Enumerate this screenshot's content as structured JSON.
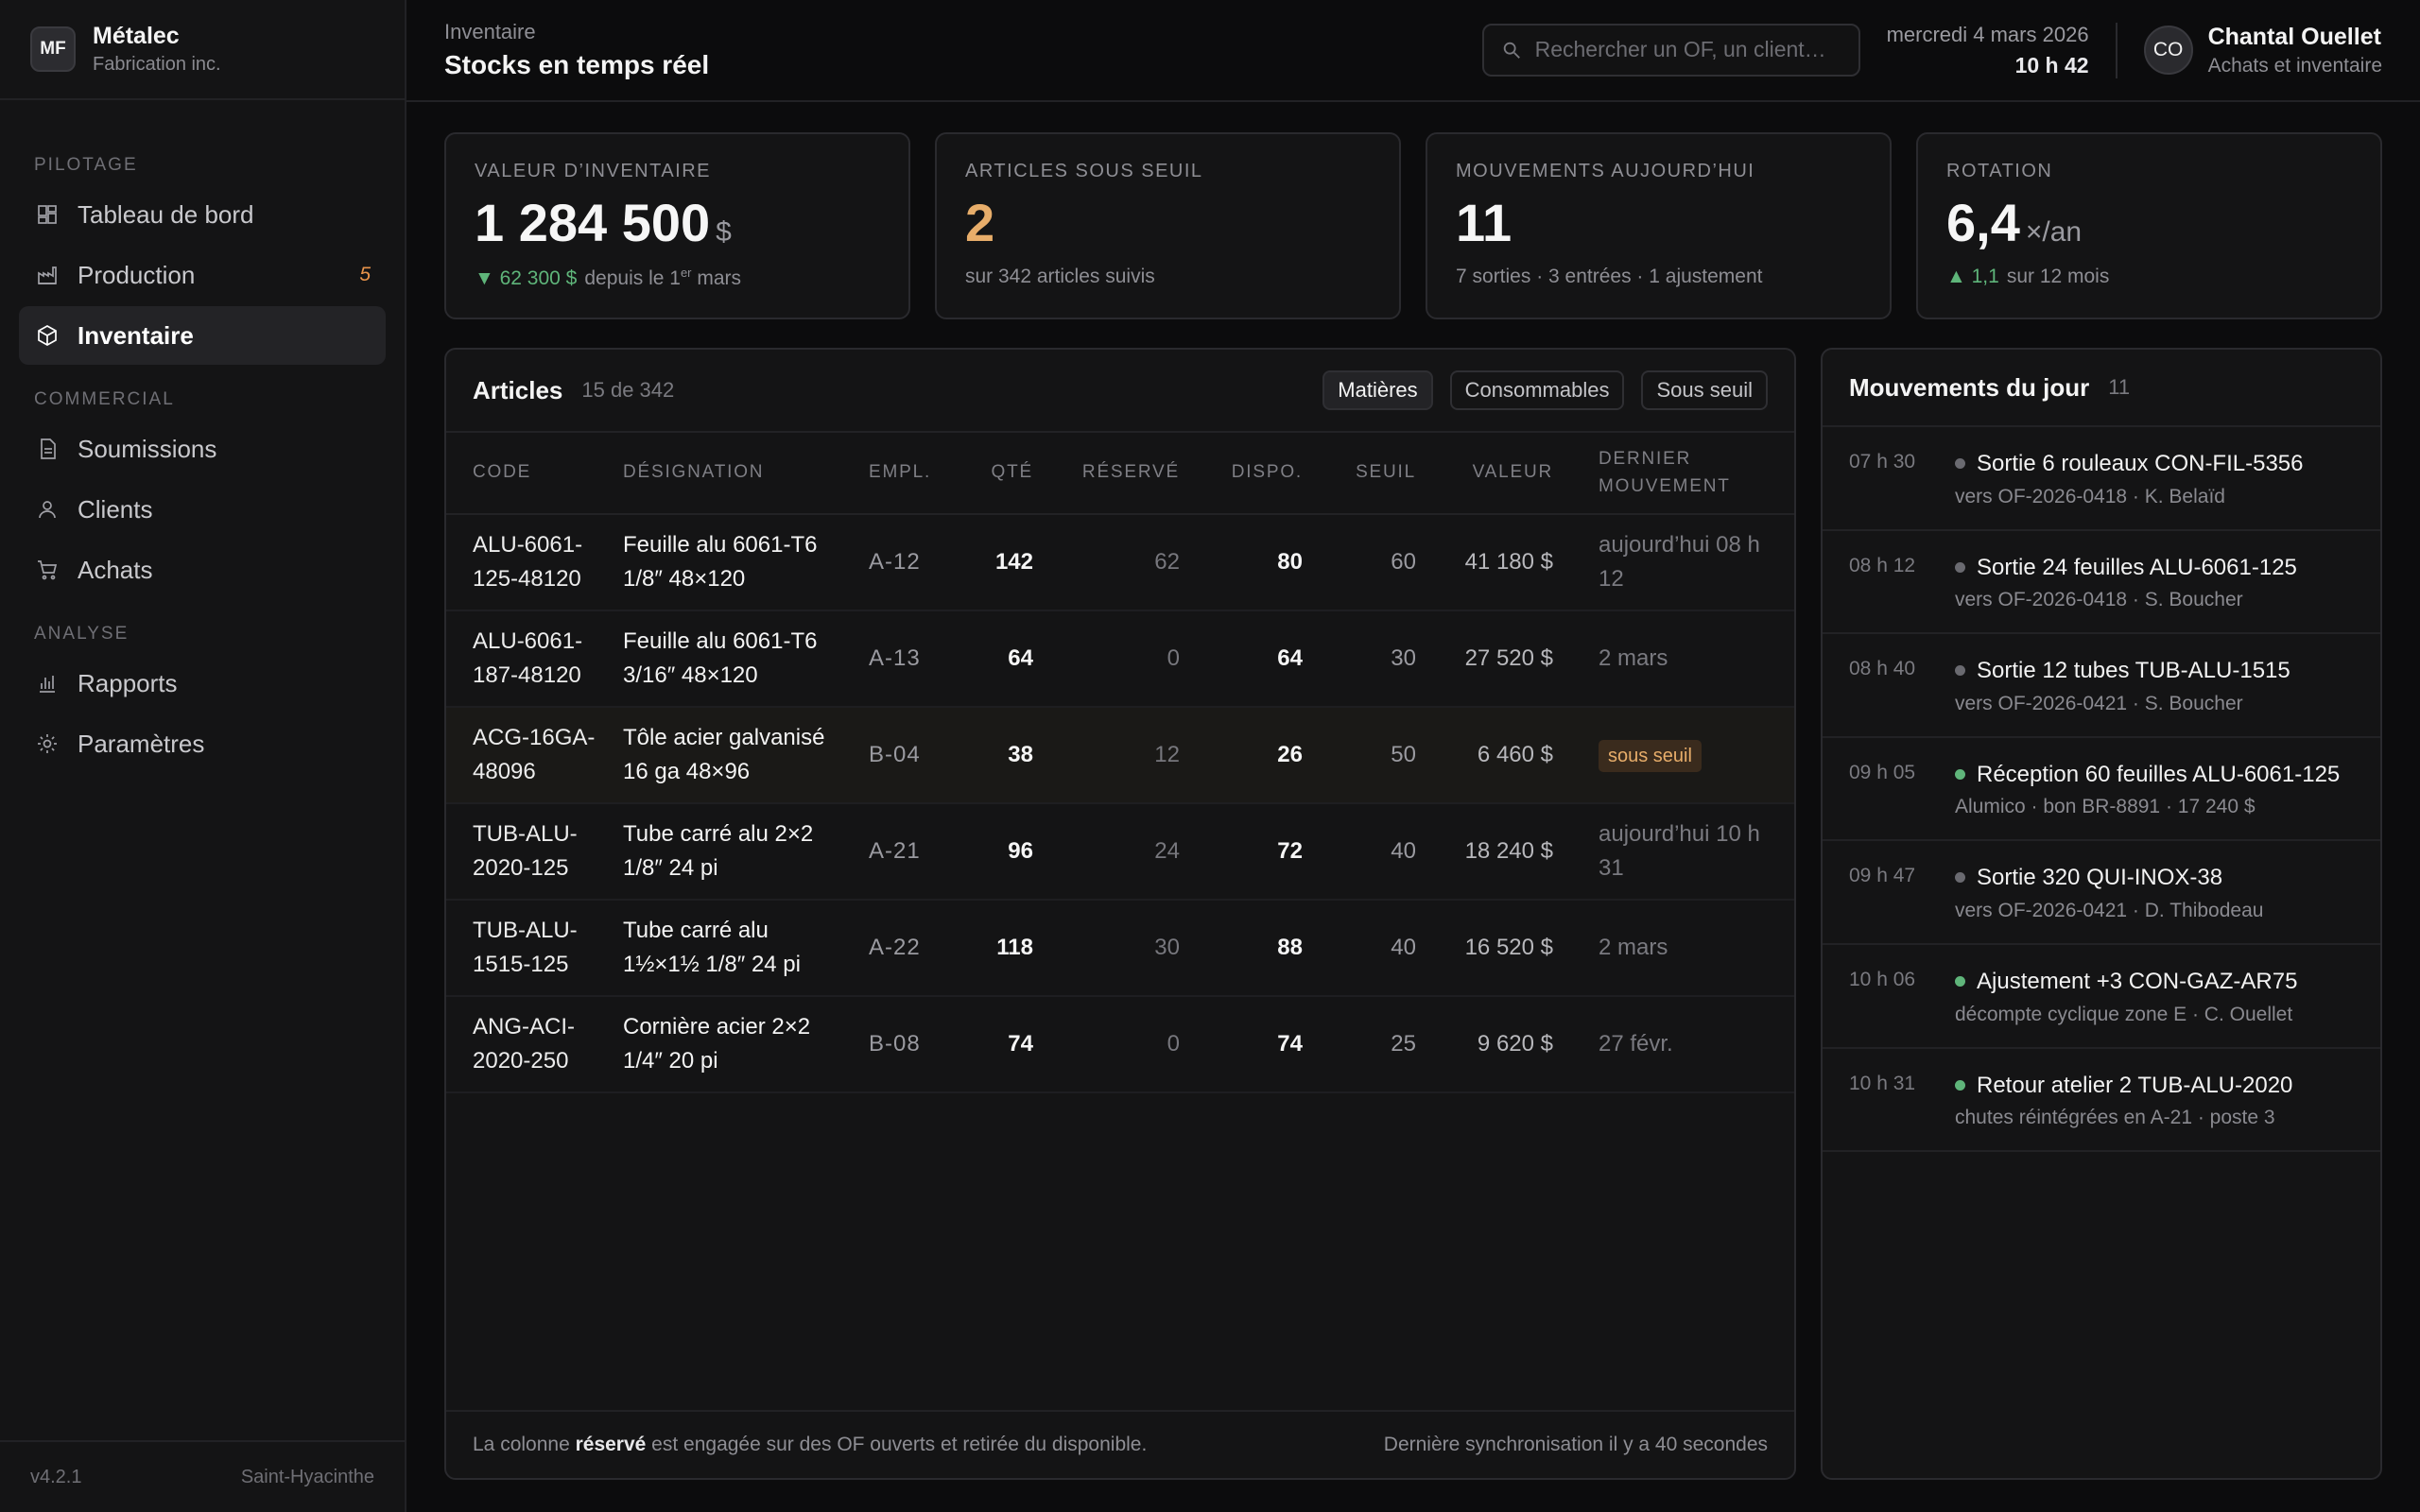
{
  "brand": {
    "initials": "MF",
    "name": "Métalec",
    "sub": "Fabrication inc."
  },
  "nav": {
    "sections": [
      {
        "label": "PILOTAGE",
        "items": [
          {
            "label": "Tableau de bord",
            "icon": "dashboard-icon"
          },
          {
            "label": "Production",
            "icon": "factory-icon",
            "badge": "5"
          },
          {
            "label": "Inventaire",
            "icon": "box-icon",
            "active": true
          }
        ]
      },
      {
        "label": "COMMERCIAL",
        "items": [
          {
            "label": "Soumissions",
            "icon": "document-icon"
          },
          {
            "label": "Clients",
            "icon": "user-icon"
          },
          {
            "label": "Achats",
            "icon": "cart-icon"
          }
        ]
      },
      {
        "label": "ANALYSE",
        "items": [
          {
            "label": "Rapports",
            "icon": "bar-chart-icon"
          },
          {
            "label": "Paramètres",
            "icon": "gear-icon"
          }
        ]
      }
    ]
  },
  "footer": {
    "version": "v4.2.1",
    "location": "Saint-Hyacinthe"
  },
  "header": {
    "breadcrumb": "Inventaire",
    "title": "Stocks en temps réel",
    "search_placeholder": "Rechercher un OF, un client…",
    "date": "mercredi 4 mars 2026",
    "time": "10 h 42",
    "user": {
      "initials": "CO",
      "name": "Chantal Ouellet",
      "role": "Achats et inventaire"
    }
  },
  "kpis": {
    "valeur": {
      "label": "VALEUR D’INVENTAIRE",
      "value": "1 284 500",
      "unit": "$",
      "delta": "▼ 62 300 $",
      "sub_pre": "depuis le 1",
      "sub_sup": "er",
      "sub_post": "mars"
    },
    "seuil": {
      "label": "ARTICLES SOUS SEUIL",
      "value": "2",
      "sub": "sur 342 articles suivis"
    },
    "mouvements": {
      "label": "MOUVEMENTS AUJOURD’HUI",
      "value": "11",
      "sub": "7 sorties · 3 entrées · 1 ajustement"
    },
    "rotation": {
      "label": "ROTATION",
      "value": "6,4",
      "unit": "×/an",
      "delta": "▲ 1,1",
      "sub": "sur 12 mois"
    }
  },
  "articles": {
    "title": "Articles",
    "count": "15 de 342",
    "filters": [
      "Matières",
      "Consommables",
      "Sous seuil"
    ],
    "columns": {
      "code": "CODE",
      "desig": "DÉSIGNATION",
      "empl": "EMPL.",
      "qty": "QTÉ",
      "res": "RÉSERVÉ",
      "dispo": "DISPO.",
      "seuil": "SEUIL",
      "val": "VALEUR",
      "last": "DERNIER MOUVEMENT"
    },
    "rows": [
      {
        "code": "ALU-6061-125-48120",
        "desig": "Feuille alu 6061-T6 1/8″ 48×120",
        "empl": "A-12",
        "qty": "142",
        "res": "62",
        "dispo": "80",
        "seuil": "60",
        "val": "41 180 $",
        "last": "aujourd’hui 08 h 12"
      },
      {
        "code": "ALU-6061-187-48120",
        "desig": "Feuille alu 6061-T6 3/16″ 48×120",
        "empl": "A-13",
        "qty": "64",
        "res": "0",
        "dispo": "64",
        "seuil": "30",
        "val": "27 520 $",
        "last": "2 mars"
      },
      {
        "code": "ACG-16GA-48096",
        "desig": "Tôle acier galvanisé 16 ga 48×96",
        "empl": "B-04",
        "qty": "38",
        "res": "12",
        "dispo": "26",
        "seuil": "50",
        "val": "6 460 $",
        "last": "sous seuil",
        "low": true
      },
      {
        "code": "TUB-ALU-2020-125",
        "desig": "Tube carré alu 2×2 1/8″ 24 pi",
        "empl": "A-21",
        "qty": "96",
        "res": "24",
        "dispo": "72",
        "seuil": "40",
        "val": "18 240 $",
        "last": "aujourd’hui 10 h 31"
      },
      {
        "code": "TUB-ALU-1515-125",
        "desig": "Tube carré alu 1½×1½ 1/8″ 24 pi",
        "empl": "A-22",
        "qty": "118",
        "res": "30",
        "dispo": "88",
        "seuil": "40",
        "val": "16 520 $",
        "last": "2 mars"
      },
      {
        "code": "ANG-ACI-2020-250",
        "desig": "Cornière acier 2×2 1/4″ 20 pi",
        "empl": "B-08",
        "qty": "74",
        "res": "0",
        "dispo": "74",
        "seuil": "25",
        "val": "9 620 $",
        "last": "27 févr."
      }
    ],
    "foot_pre": "La colonne ",
    "foot_bold": "réservé",
    "foot_post": " est engagée sur des OF ouverts et retirée du disponible.",
    "sync": "Dernière synchronisation il y a 40 secondes"
  },
  "moves": {
    "title": "Mouvements du jour",
    "count": "11",
    "items": [
      {
        "time": "07 h 30",
        "title": "Sortie 6 rouleaux CON-FIL-5356",
        "sub": "vers OF-2026-0418 · K. Belaïd",
        "kind": "out"
      },
      {
        "time": "08 h 12",
        "title": "Sortie 24 feuilles ALU-6061-125",
        "sub": "vers OF-2026-0418 · S. Boucher",
        "kind": "out"
      },
      {
        "time": "08 h 40",
        "title": "Sortie 12 tubes TUB-ALU-1515",
        "sub": "vers OF-2026-0421 · S. Boucher",
        "kind": "out"
      },
      {
        "time": "09 h 05",
        "title": "Réception 60 feuilles ALU-6061-125",
        "sub": "Alumico · bon BR-8891 · 17 240 $",
        "kind": "in"
      },
      {
        "time": "09 h 47",
        "title": "Sortie 320 QUI-INOX-38",
        "sub": "vers OF-2026-0421 · D. Thibodeau",
        "kind": "out"
      },
      {
        "time": "10 h 06",
        "title": "Ajustement +3 CON-GAZ-AR75",
        "sub": "décompte cyclique zone E · C. Ouellet",
        "kind": "in"
      },
      {
        "time": "10 h 31",
        "title": "Retour atelier 2 TUB-ALU-2020",
        "sub": "chutes réintégrées en A-21 · poste 3",
        "kind": "in"
      }
    ]
  },
  "colors": {
    "accent_warn": "#e7ad6a",
    "accent_up": "#5fb57a",
    "badge_prod": "#e8934a"
  }
}
